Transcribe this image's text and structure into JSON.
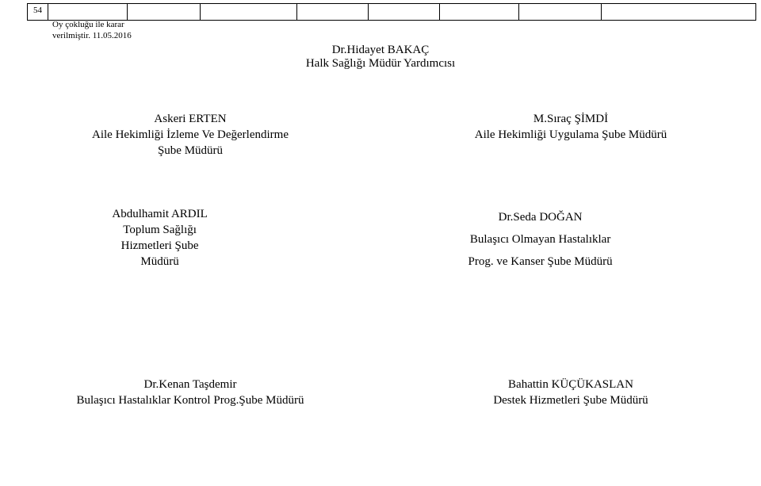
{
  "table": {
    "row_number": "54",
    "cells": [
      "",
      "",
      "",
      "",
      "",
      "",
      "",
      ""
    ]
  },
  "note": {
    "line1": "Oy çokluğu ile karar",
    "line2": "verilmiştir. 11.05.2016"
  },
  "header": {
    "name": "Dr.Hidayet BAKAÇ",
    "title": "Halk Sağlığı Müdür Yardımcısı"
  },
  "row1_left": {
    "line1": "Askeri ERTEN",
    "line2": "Aile Hekimliği İzleme Ve Değerlendirme",
    "line3": "Şube Müdürü"
  },
  "row1_right": {
    "line1": "M.Sıraç ŞİMDİ",
    "line2": "Aile Hekimliği Uygulama Şube Müdürü"
  },
  "row2_left": {
    "line1": "Abdulhamit ARDIL",
    "line2": "Toplum Sağlığı",
    "line3": "Hizmetleri Şube",
    "line4": "Müdürü"
  },
  "row2_right": {
    "line1": "Dr.Seda DOĞAN",
    "line2": "Bulaşıcı Olmayan Hastalıklar",
    "line3": "Prog. ve Kanser Şube Müdürü"
  },
  "row3_left": {
    "line1": "Dr.Kenan Taşdemir",
    "line2": "Bulaşıcı Hastalıklar Kontrol Prog.Şube Müdürü"
  },
  "row3_right": {
    "line1": "Bahattin KÜÇÜKASLAN",
    "line2": "Destek Hizmetleri Şube Müdürü"
  }
}
